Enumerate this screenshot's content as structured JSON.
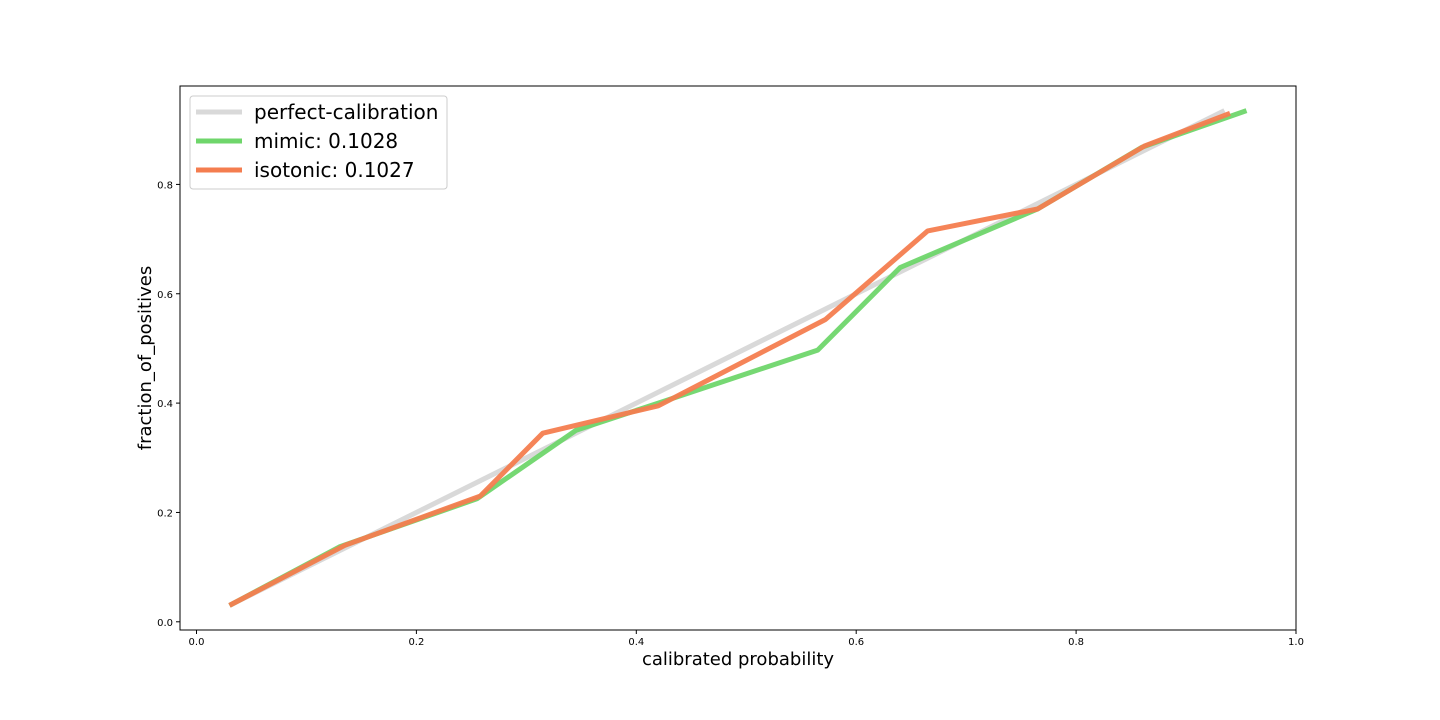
{
  "chart_data": {
    "type": "line",
    "title": "",
    "xlabel": "calibrated probability",
    "ylabel": "fraction_of_positives",
    "xlim": [
      -0.015,
      1.0
    ],
    "ylim": [
      -0.015,
      0.98
    ],
    "xticks": [
      0.0,
      0.2,
      0.4,
      0.6,
      0.8,
      1.0
    ],
    "xtick_labels": [
      "0.0",
      "0.2",
      "0.4",
      "0.6",
      "0.8",
      "1.0"
    ],
    "yticks": [
      0.0,
      0.2,
      0.4,
      0.6,
      0.8
    ],
    "ytick_labels": [
      "0.0",
      "0.2",
      "0.4",
      "0.6",
      "0.8"
    ],
    "grid": false,
    "legend_position": "upper-left",
    "series": [
      {
        "name": "perfect-calibration",
        "color": "#d9d9d9",
        "x": [
          0.03,
          0.935
        ],
        "y": [
          0.03,
          0.935
        ]
      },
      {
        "name": "mimic: 0.1028",
        "color": "#6fd66b",
        "x": [
          0.03,
          0.13,
          0.255,
          0.345,
          0.42,
          0.565,
          0.64,
          0.765,
          0.86,
          0.955
        ],
        "y": [
          0.03,
          0.137,
          0.225,
          0.35,
          0.4,
          0.497,
          0.648,
          0.755,
          0.868,
          0.935
        ]
      },
      {
        "name": "isotonic: 0.1027",
        "color": "#f47d4f",
        "x": [
          0.03,
          0.135,
          0.258,
          0.315,
          0.42,
          0.572,
          0.665,
          0.765,
          0.862,
          0.94
        ],
        "y": [
          0.03,
          0.14,
          0.23,
          0.345,
          0.395,
          0.553,
          0.715,
          0.755,
          0.87,
          0.93
        ]
      }
    ]
  }
}
